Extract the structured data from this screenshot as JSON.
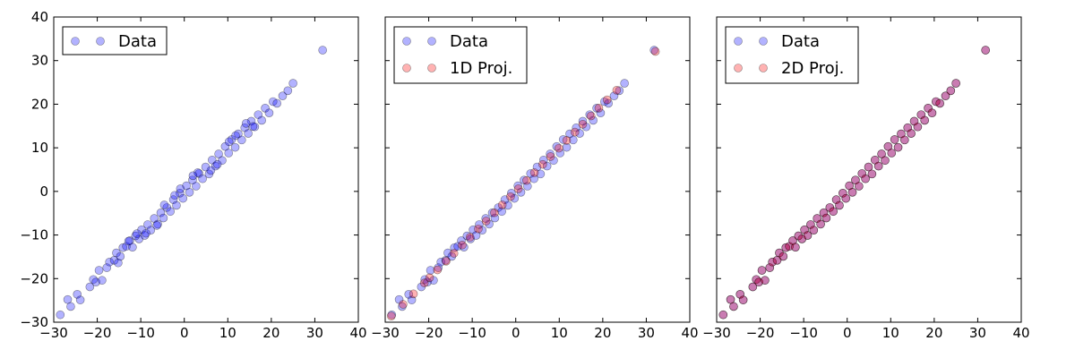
{
  "colors": {
    "data": "#0000ff",
    "projection": "#ff0000"
  },
  "chart_data": [
    {
      "type": "scatter",
      "xlim": [
        -30,
        40
      ],
      "ylim": [
        -30,
        40
      ],
      "xticks": [
        -30,
        -20,
        -10,
        0,
        10,
        20,
        30,
        40
      ],
      "yticks": [
        -30,
        -20,
        -10,
        0,
        10,
        20,
        30,
        40
      ],
      "grid": false,
      "legend_position": "top-left",
      "series": [
        {
          "name": "Data",
          "color": "#0000ff",
          "x": [
            -28.5,
            -26.8,
            -26.1,
            -24.6,
            -23.9,
            -21.7,
            -20.9,
            -20.3,
            -19.6,
            -18.9,
            -17.8,
            -17.2,
            -16.1,
            -15.6,
            -14.7,
            -14.1,
            -13.3,
            -12.5,
            -11.9,
            -11.2,
            -10.4,
            -9.8,
            -9.1,
            -8.4,
            -7.7,
            -6.9,
            -6.1,
            -5.4,
            -4.8,
            -4.0,
            -3.2,
            -2.5,
            -1.8,
            -1.0,
            -0.3,
            0.5,
            1.2,
            1.9,
            2.7,
            3.4,
            4.2,
            4.9,
            5.7,
            6.4,
            7.2,
            7.9,
            8.7,
            9.4,
            10.2,
            10.9,
            11.7,
            12.4,
            13.2,
            13.9,
            14.7,
            15.4,
            16.2,
            17.0,
            17.8,
            18.6,
            19.5,
            20.4,
            21.3,
            22.6,
            23.8,
            25.0,
            31.8,
            -12.8,
            -8.8,
            -4.6,
            -0.9,
            3.1,
            7.6,
            11.8,
            15.8,
            -15.2,
            -10.9,
            -6.3,
            -2.2,
            2.0,
            6.1,
            10.3,
            14.2
          ],
          "y": [
            -28.3,
            -24.8,
            -26.4,
            -23.6,
            -24.9,
            -21.9,
            -20.2,
            -20.8,
            -18.1,
            -20.4,
            -17.5,
            -16.2,
            -15.8,
            -14.1,
            -14.9,
            -12.9,
            -12.6,
            -11.3,
            -12.8,
            -10.2,
            -10.9,
            -8.8,
            -10.1,
            -7.6,
            -8.9,
            -6.2,
            -7.5,
            -4.9,
            -6.1,
            -3.7,
            -4.6,
            -1.9,
            -3.2,
            -0.4,
            -1.6,
            1.3,
            -0.2,
            2.6,
            1.2,
            4.1,
            2.9,
            5.6,
            4.0,
            7.2,
            5.8,
            8.6,
            7.1,
            10.3,
            8.8,
            11.9,
            10.1,
            13.2,
            11.8,
            14.6,
            13.3,
            16.1,
            14.8,
            17.6,
            16.3,
            19.1,
            18.0,
            20.6,
            20.2,
            21.9,
            23.1,
            24.8,
            32.4,
            -11.4,
            -9.6,
            -3.1,
            0.6,
            4.3,
            6.2,
            12.8,
            14.9,
            -16.4,
            -9.7,
            -7.8,
            -0.9,
            3.6,
            4.8,
            11.4,
            15.6
          ]
        }
      ]
    },
    {
      "type": "scatter",
      "xlim": [
        -30,
        40
      ],
      "ylim": [
        -30,
        40
      ],
      "xticks": [
        -30,
        -20,
        -10,
        0,
        10,
        20,
        30,
        40
      ],
      "yticks": [],
      "grid": false,
      "legend_position": "top-left",
      "series": [
        {
          "name": "Data",
          "color": "#0000ff",
          "x": [
            -28.5,
            -26.8,
            -26.1,
            -24.6,
            -23.9,
            -21.7,
            -20.9,
            -20.3,
            -19.6,
            -18.9,
            -17.8,
            -17.2,
            -16.1,
            -15.6,
            -14.7,
            -14.1,
            -13.3,
            -12.5,
            -11.9,
            -11.2,
            -10.4,
            -9.8,
            -9.1,
            -8.4,
            -7.7,
            -6.9,
            -6.1,
            -5.4,
            -4.8,
            -4.0,
            -3.2,
            -2.5,
            -1.8,
            -1.0,
            -0.3,
            0.5,
            1.2,
            1.9,
            2.7,
            3.4,
            4.2,
            4.9,
            5.7,
            6.4,
            7.2,
            7.9,
            8.7,
            9.4,
            10.2,
            10.9,
            11.7,
            12.4,
            13.2,
            13.9,
            14.7,
            15.4,
            16.2,
            17.0,
            17.8,
            18.6,
            19.5,
            20.4,
            21.3,
            22.6,
            23.8,
            25.0,
            31.8
          ],
          "y": [
            -28.3,
            -24.8,
            -26.4,
            -23.6,
            -24.9,
            -21.9,
            -20.2,
            -20.8,
            -18.1,
            -20.4,
            -17.5,
            -16.2,
            -15.8,
            -14.1,
            -14.9,
            -12.9,
            -12.6,
            -11.3,
            -12.8,
            -10.2,
            -10.9,
            -8.8,
            -10.1,
            -7.6,
            -8.9,
            -6.2,
            -7.5,
            -4.9,
            -6.1,
            -3.7,
            -4.6,
            -1.9,
            -3.2,
            -0.4,
            -1.6,
            1.3,
            -0.2,
            2.6,
            1.2,
            4.1,
            2.9,
            5.6,
            4.0,
            7.2,
            5.8,
            8.6,
            7.1,
            10.3,
            8.8,
            11.9,
            10.1,
            13.2,
            11.8,
            14.6,
            13.3,
            16.1,
            14.8,
            17.6,
            16.3,
            19.1,
            18.0,
            20.6,
            20.2,
            21.9,
            23.1,
            24.8,
            32.4
          ]
        },
        {
          "name": "1D Proj.",
          "color": "#ff0000",
          "x": [
            -28.6,
            -25.9,
            -23.5,
            -21.0,
            -19.8,
            -18.0,
            -16.0,
            -14.2,
            -12.3,
            -10.5,
            -8.6,
            -6.8,
            -4.9,
            -3.1,
            -1.2,
            0.6,
            2.5,
            4.3,
            6.2,
            8.0,
            9.9,
            11.7,
            13.6,
            15.4,
            17.3,
            19.1,
            21.0,
            23.2,
            32.1
          ],
          "y": [
            -28.6,
            -25.9,
            -23.5,
            -21.0,
            -19.8,
            -18.0,
            -16.0,
            -14.2,
            -12.3,
            -10.5,
            -8.6,
            -6.8,
            -4.9,
            -3.1,
            -1.2,
            0.6,
            2.5,
            4.3,
            6.2,
            8.0,
            9.9,
            11.7,
            13.6,
            15.4,
            17.3,
            19.1,
            21.0,
            23.2,
            32.1
          ]
        }
      ]
    },
    {
      "type": "scatter",
      "xlim": [
        -30,
        40
      ],
      "ylim": [
        -30,
        40
      ],
      "xticks": [
        -30,
        -20,
        -10,
        0,
        10,
        20,
        30,
        40
      ],
      "yticks": [],
      "grid": false,
      "legend_position": "top-left",
      "series": [
        {
          "name": "Data",
          "color": "#0000ff",
          "x": [
            -28.5,
            -26.8,
            -26.1,
            -24.6,
            -23.9,
            -21.7,
            -20.9,
            -20.3,
            -19.6,
            -18.9,
            -17.8,
            -17.2,
            -16.1,
            -15.6,
            -14.7,
            -14.1,
            -13.3,
            -12.5,
            -11.9,
            -11.2,
            -10.4,
            -9.8,
            -9.1,
            -8.4,
            -7.7,
            -6.9,
            -6.1,
            -5.4,
            -4.8,
            -4.0,
            -3.2,
            -2.5,
            -1.8,
            -1.0,
            -0.3,
            0.5,
            1.2,
            1.9,
            2.7,
            3.4,
            4.2,
            4.9,
            5.7,
            6.4,
            7.2,
            7.9,
            8.7,
            9.4,
            10.2,
            10.9,
            11.7,
            12.4,
            13.2,
            13.9,
            14.7,
            15.4,
            16.2,
            17.0,
            17.8,
            18.6,
            19.5,
            20.4,
            21.3,
            22.6,
            23.8,
            25.0,
            31.8
          ],
          "y": [
            -28.3,
            -24.8,
            -26.4,
            -23.6,
            -24.9,
            -21.9,
            -20.2,
            -20.8,
            -18.1,
            -20.4,
            -17.5,
            -16.2,
            -15.8,
            -14.1,
            -14.9,
            -12.9,
            -12.6,
            -11.3,
            -12.8,
            -10.2,
            -10.9,
            -8.8,
            -10.1,
            -7.6,
            -8.9,
            -6.2,
            -7.5,
            -4.9,
            -6.1,
            -3.7,
            -4.6,
            -1.9,
            -3.2,
            -0.4,
            -1.6,
            1.3,
            -0.2,
            2.6,
            1.2,
            4.1,
            2.9,
            5.6,
            4.0,
            7.2,
            5.8,
            8.6,
            7.1,
            10.3,
            8.8,
            11.9,
            10.1,
            13.2,
            11.8,
            14.6,
            13.3,
            16.1,
            14.8,
            17.6,
            16.3,
            19.1,
            18.0,
            20.6,
            20.2,
            21.9,
            23.1,
            24.8,
            32.4
          ]
        },
        {
          "name": "2D Proj.",
          "color": "#ff0000",
          "x": [
            -28.5,
            -26.8,
            -26.1,
            -24.6,
            -23.9,
            -21.7,
            -20.9,
            -20.3,
            -19.6,
            -18.9,
            -17.8,
            -17.2,
            -16.1,
            -15.6,
            -14.7,
            -14.1,
            -13.3,
            -12.5,
            -11.9,
            -11.2,
            -10.4,
            -9.8,
            -9.1,
            -8.4,
            -7.7,
            -6.9,
            -6.1,
            -5.4,
            -4.8,
            -4.0,
            -3.2,
            -2.5,
            -1.8,
            -1.0,
            -0.3,
            0.5,
            1.2,
            1.9,
            2.7,
            3.4,
            4.2,
            4.9,
            5.7,
            6.4,
            7.2,
            7.9,
            8.7,
            9.4,
            10.2,
            10.9,
            11.7,
            12.4,
            13.2,
            13.9,
            14.7,
            15.4,
            16.2,
            17.0,
            17.8,
            18.6,
            19.5,
            20.4,
            21.3,
            22.6,
            23.8,
            25.0,
            31.8
          ],
          "y": [
            -28.3,
            -24.8,
            -26.4,
            -23.6,
            -24.9,
            -21.9,
            -20.2,
            -20.8,
            -18.1,
            -20.4,
            -17.5,
            -16.2,
            -15.8,
            -14.1,
            -14.9,
            -12.9,
            -12.6,
            -11.3,
            -12.8,
            -10.2,
            -10.9,
            -8.8,
            -10.1,
            -7.6,
            -8.9,
            -6.2,
            -7.5,
            -4.9,
            -6.1,
            -3.7,
            -4.6,
            -1.9,
            -3.2,
            -0.4,
            -1.6,
            1.3,
            -0.2,
            2.6,
            1.2,
            4.1,
            2.9,
            5.6,
            4.0,
            7.2,
            5.8,
            8.6,
            7.1,
            10.3,
            8.8,
            11.9,
            10.1,
            13.2,
            11.8,
            14.6,
            13.3,
            16.1,
            14.8,
            17.6,
            16.3,
            19.1,
            18.0,
            20.6,
            20.2,
            21.9,
            23.1,
            24.8,
            32.4
          ]
        }
      ]
    }
  ]
}
